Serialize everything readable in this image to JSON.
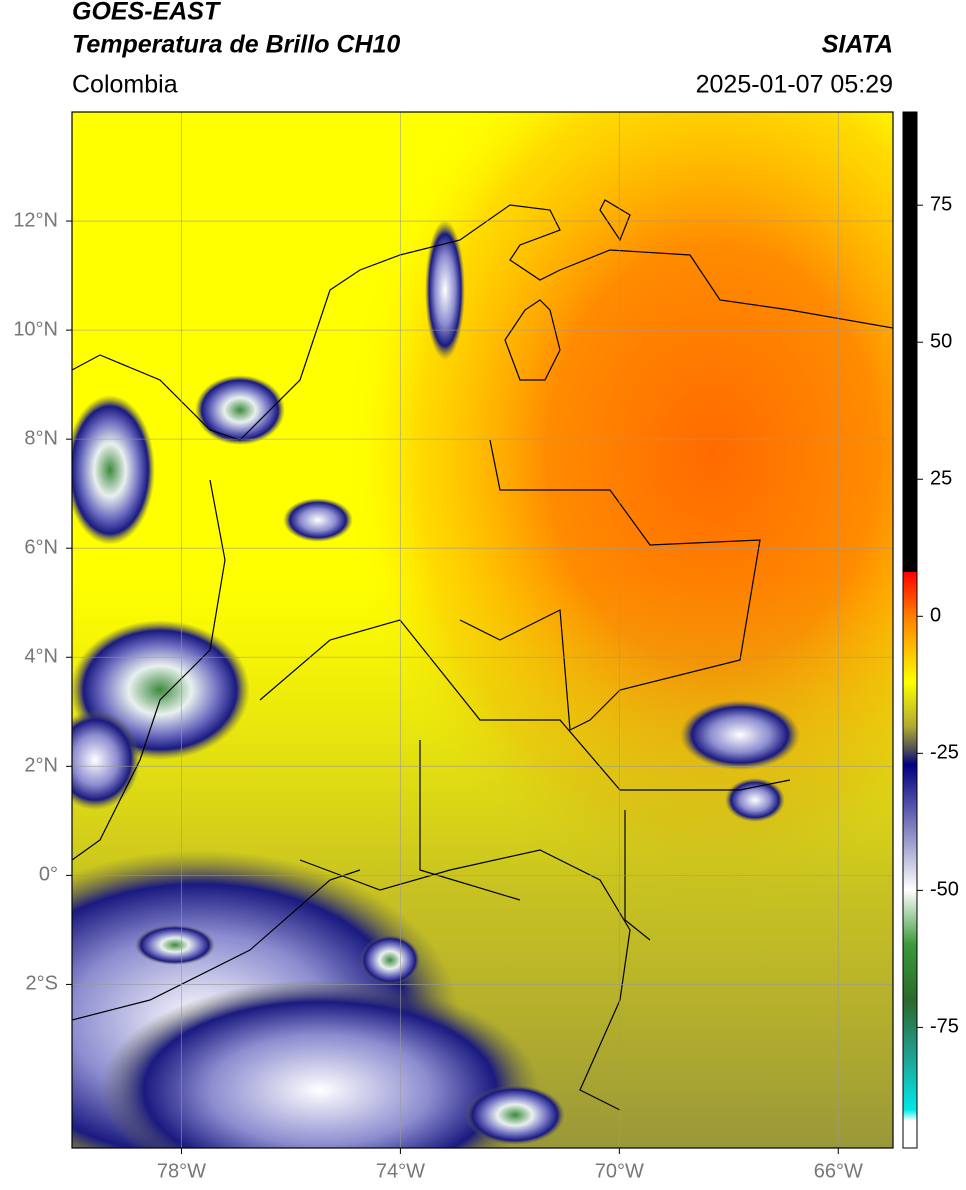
{
  "header": {
    "satellite": "GOES-EAST",
    "product": "Temperatura de Brillo CH10",
    "source": "SIATA",
    "region": "Colombia",
    "datetime": "2025-01-07 05:29"
  },
  "map": {
    "xlim": [
      -80,
      -65
    ],
    "ylim": [
      -5,
      14
    ],
    "xticks": [
      {
        "value": -78,
        "label": "78°W"
      },
      {
        "value": -74,
        "label": "74°W"
      },
      {
        "value": -70,
        "label": "70°W"
      },
      {
        "value": -66,
        "label": "66°W"
      }
    ],
    "yticks": [
      {
        "value": 12,
        "label": "12°N"
      },
      {
        "value": 10,
        "label": "10°N"
      },
      {
        "value": 8,
        "label": "8°N"
      },
      {
        "value": 6,
        "label": "6°N"
      },
      {
        "value": 4,
        "label": "4°N"
      },
      {
        "value": 2,
        "label": "2°N"
      },
      {
        "value": 0,
        "label": "0°"
      },
      {
        "value": -2,
        "label": "2°S"
      }
    ]
  },
  "colorbar": {
    "range": [
      -97,
      92
    ],
    "ticks": [
      75,
      50,
      25,
      0,
      -25,
      -50,
      -75
    ]
  }
}
